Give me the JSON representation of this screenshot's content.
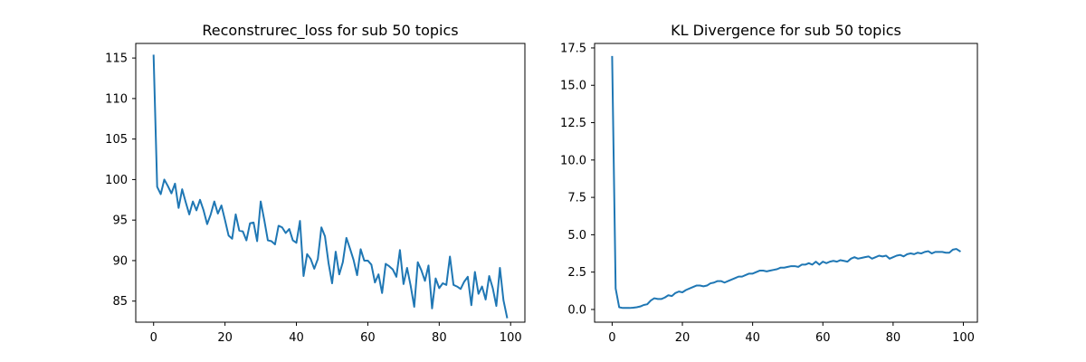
{
  "chart_data": [
    {
      "type": "line",
      "title": "Reconstrurec_loss for sub 50 topics",
      "xlabel": "",
      "ylabel": "",
      "xlim": [
        -5,
        104
      ],
      "ylim": [
        82.4,
        116.8
      ],
      "xticks": [
        0,
        20,
        40,
        60,
        80,
        100
      ],
      "yticks": [
        85,
        90,
        95,
        100,
        105,
        110,
        115
      ],
      "grid": false,
      "series": [
        {
          "color": "#1f77b4",
          "x": [
            0,
            1,
            2,
            3,
            4,
            5,
            6,
            7,
            8,
            9,
            10,
            11,
            12,
            13,
            14,
            15,
            16,
            17,
            18,
            19,
            20,
            21,
            22,
            23,
            24,
            25,
            26,
            27,
            28,
            29,
            30,
            31,
            32,
            33,
            34,
            35,
            36,
            37,
            38,
            39,
            40,
            41,
            42,
            43,
            44,
            45,
            46,
            47,
            48,
            49,
            50,
            51,
            52,
            53,
            54,
            55,
            56,
            57,
            58,
            59,
            60,
            61,
            62,
            63,
            64,
            65,
            66,
            67,
            68,
            69,
            70,
            71,
            72,
            73,
            74,
            75,
            76,
            77,
            78,
            79,
            80,
            81,
            82,
            83,
            84,
            85,
            86,
            87,
            88,
            89,
            90,
            91,
            92,
            93,
            94,
            95,
            96,
            97,
            98,
            99
          ],
          "values": [
            115.3,
            99.1,
            98.2,
            100.0,
            99.2,
            98.3,
            99.5,
            96.5,
            98.8,
            97.2,
            95.7,
            97.3,
            96.2,
            97.5,
            96.2,
            94.5,
            95.7,
            97.3,
            95.8,
            96.8,
            95.0,
            93.1,
            92.7,
            95.7,
            93.7,
            93.6,
            92.5,
            94.6,
            94.7,
            92.4,
            97.3,
            95.0,
            92.5,
            92.4,
            92.0,
            94.3,
            94.1,
            93.4,
            93.9,
            92.5,
            92.2,
            94.9,
            88.1,
            90.8,
            90.2,
            89.0,
            90.2,
            94.1,
            93.0,
            89.7,
            87.2,
            91.1,
            88.3,
            89.8,
            92.8,
            91.5,
            90.1,
            88.2,
            91.4,
            90.0,
            90.0,
            89.5,
            87.3,
            88.3,
            86.0,
            89.6,
            89.3,
            88.9,
            88.0,
            91.3,
            87.1,
            89.1,
            86.9,
            84.3,
            89.8,
            88.8,
            87.5,
            89.4,
            84.1,
            87.8,
            86.6,
            87.2,
            87.0,
            90.5,
            87.0,
            86.8,
            86.5,
            87.4,
            88.0,
            84.5,
            88.6,
            85.9,
            86.8,
            85.2,
            88.1,
            86.6,
            84.4,
            89.1,
            85.1,
            83.0
          ]
        }
      ]
    },
    {
      "type": "line",
      "title": "KL Divergence for sub 50 topics",
      "xlabel": "",
      "ylabel": "",
      "xlim": [
        -5,
        104
      ],
      "ylim": [
        -0.85,
        17.8
      ],
      "xticks": [
        0,
        20,
        40,
        60,
        80,
        100
      ],
      "yticks": [
        0.0,
        2.5,
        5.0,
        7.5,
        10.0,
        12.5,
        15.0,
        17.5
      ],
      "ytick_labels": [
        "0.0",
        "2.5",
        "5.0",
        "7.5",
        "10.0",
        "12.5",
        "15.0",
        "17.5"
      ],
      "grid": false,
      "series": [
        {
          "color": "#1f77b4",
          "x": [
            0,
            1,
            2,
            3,
            4,
            5,
            6,
            7,
            8,
            9,
            10,
            11,
            12,
            13,
            14,
            15,
            16,
            17,
            18,
            19,
            20,
            21,
            22,
            23,
            24,
            25,
            26,
            27,
            28,
            29,
            30,
            31,
            32,
            33,
            34,
            35,
            36,
            37,
            38,
            39,
            40,
            41,
            42,
            43,
            44,
            45,
            46,
            47,
            48,
            49,
            50,
            51,
            52,
            53,
            54,
            55,
            56,
            57,
            58,
            59,
            60,
            61,
            62,
            63,
            64,
            65,
            66,
            67,
            68,
            69,
            70,
            71,
            72,
            73,
            74,
            75,
            76,
            77,
            78,
            79,
            80,
            81,
            82,
            83,
            84,
            85,
            86,
            87,
            88,
            89,
            90,
            91,
            92,
            93,
            94,
            95,
            96,
            97,
            98,
            99
          ],
          "values": [
            16.9,
            1.4,
            0.15,
            0.1,
            0.1,
            0.1,
            0.12,
            0.15,
            0.2,
            0.3,
            0.35,
            0.6,
            0.75,
            0.7,
            0.7,
            0.8,
            0.95,
            0.9,
            1.1,
            1.2,
            1.15,
            1.3,
            1.4,
            1.5,
            1.6,
            1.6,
            1.55,
            1.6,
            1.75,
            1.8,
            1.9,
            1.9,
            1.8,
            1.9,
            2.0,
            2.1,
            2.2,
            2.2,
            2.3,
            2.4,
            2.4,
            2.5,
            2.6,
            2.6,
            2.55,
            2.6,
            2.65,
            2.7,
            2.8,
            2.8,
            2.85,
            2.9,
            2.9,
            2.85,
            3.0,
            3.0,
            3.1,
            3.0,
            3.2,
            3.0,
            3.2,
            3.1,
            3.2,
            3.25,
            3.2,
            3.3,
            3.25,
            3.2,
            3.4,
            3.5,
            3.4,
            3.45,
            3.5,
            3.55,
            3.4,
            3.5,
            3.6,
            3.55,
            3.6,
            3.4,
            3.5,
            3.6,
            3.65,
            3.55,
            3.7,
            3.75,
            3.7,
            3.8,
            3.75,
            3.85,
            3.9,
            3.75,
            3.85,
            3.85,
            3.85,
            3.8,
            3.8,
            4.0,
            4.05,
            3.9
          ]
        }
      ]
    }
  ]
}
